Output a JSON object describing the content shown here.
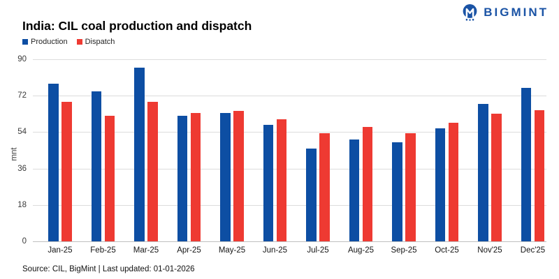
{
  "logo": {
    "text": "BIGMINT",
    "color": "#1a53a5",
    "icon": "bigmint-monogram"
  },
  "header": {
    "title": "India: CIL coal production and dispatch"
  },
  "chart_data": {
    "type": "bar",
    "categories": [
      "Jan-25",
      "Feb-25",
      "Mar-25",
      "Apr-25",
      "May-25",
      "Jun-25",
      "Jul-25",
      "Aug-25",
      "Sep-25",
      "Oct-25",
      "Nov'25",
      "Dec'25"
    ],
    "series": [
      {
        "name": "Production",
        "color": "#0d4ea3",
        "values": [
          78,
          74,
          86,
          62,
          63.5,
          57.5,
          46,
          50.5,
          49,
          56,
          68,
          76
        ]
      },
      {
        "name": "Dispatch",
        "color": "#ee3a32",
        "values": [
          69,
          62,
          69,
          63.5,
          64.5,
          60.5,
          53.5,
          56.5,
          53.5,
          58.5,
          63,
          65
        ]
      }
    ],
    "title": "India: CIL coal production and dispatch",
    "xlabel": "",
    "ylabel": "mnt",
    "ylim": [
      0,
      90
    ],
    "yticks": [
      0,
      18,
      36,
      54,
      72,
      90
    ],
    "grid": true,
    "legend_position": "top-left"
  },
  "footer": {
    "source": "Source: CIL, BigMint | Last updated: 01-01-2026"
  }
}
